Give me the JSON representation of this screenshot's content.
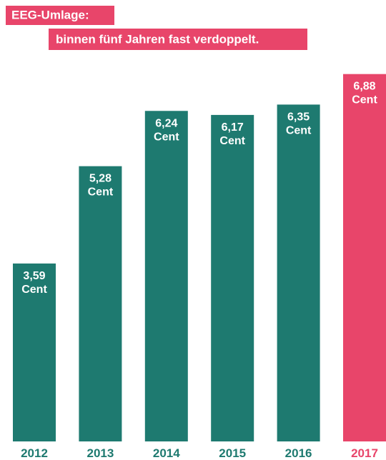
{
  "chart_data": {
    "type": "bar",
    "title": "EEG-Umlage:",
    "subtitle": "binnen fünf Jahren fast verdoppelt.",
    "categories": [
      "2012",
      "2013",
      "2014",
      "2015",
      "2016",
      "2017"
    ],
    "values": [
      3.59,
      5.28,
      6.24,
      6.17,
      6.35,
      6.88
    ],
    "value_labels": [
      "3,59 Cent",
      "5,28 Cent",
      "6,24 Cent",
      "6,17 Cent",
      "6,35 Cent",
      "6,88 Cent"
    ],
    "colors": [
      "#1e7a70",
      "#1e7a70",
      "#1e7a70",
      "#1e7a70",
      "#1e7a70",
      "#e8456a"
    ],
    "title_color": "#e8456a",
    "ylim": [
      0.5,
      7.0
    ]
  }
}
